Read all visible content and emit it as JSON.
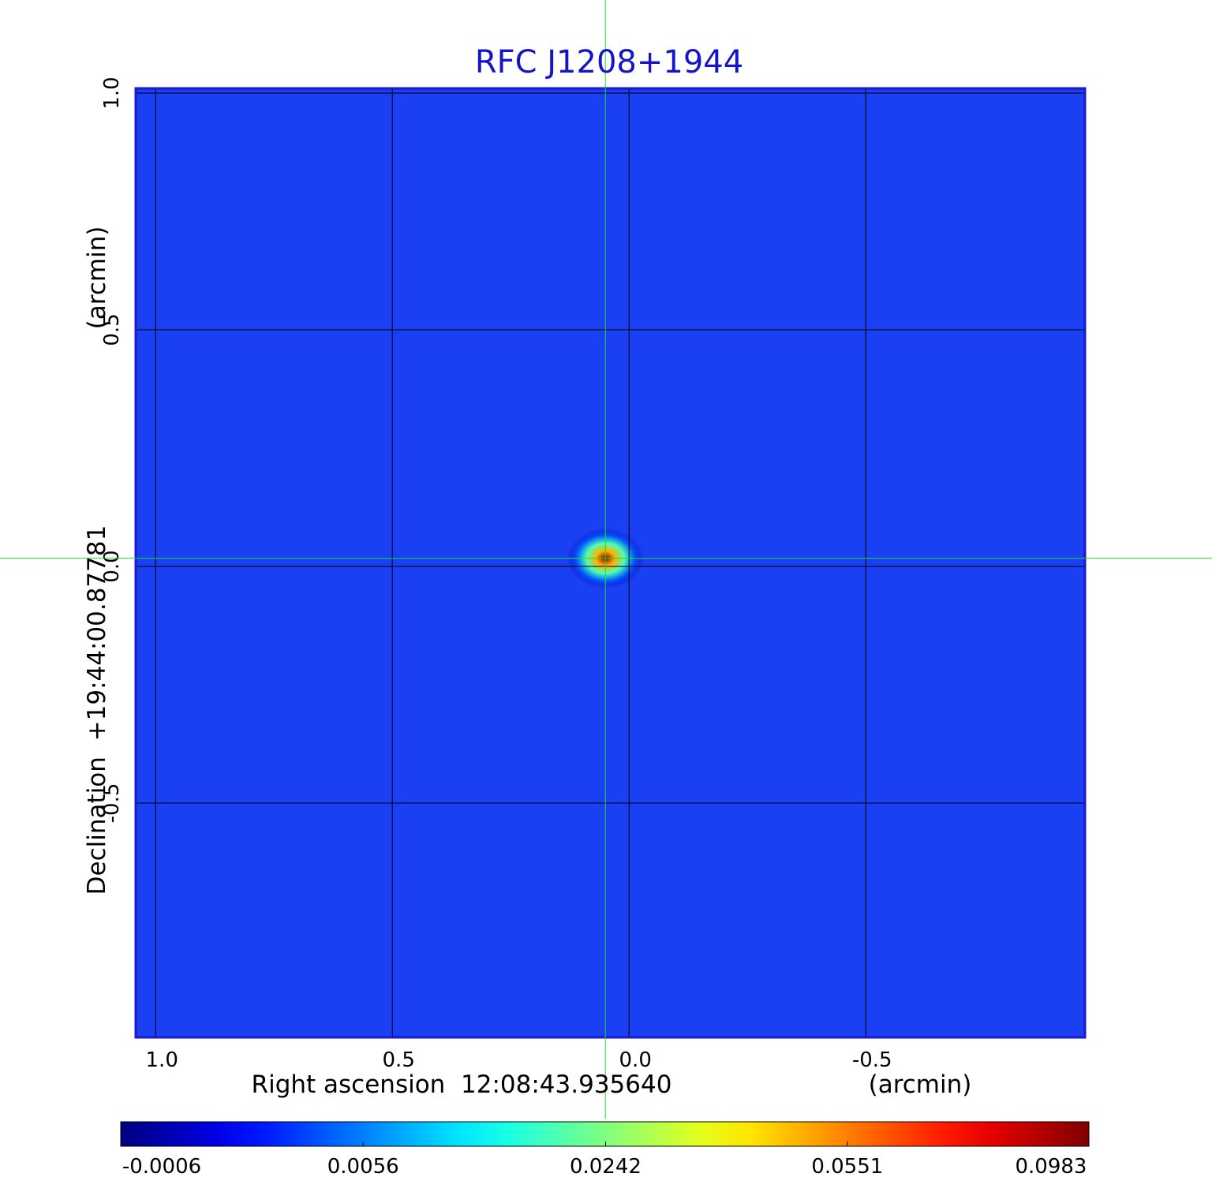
{
  "chart_data": {
    "type": "image",
    "title": "RFC J1208+1944",
    "xlabel": "Right ascension  12:08:43.935640",
    "xunit": "(arcmin)",
    "ylabel": "Declination  +19:44:00.87781",
    "yunit": "(arcmin)",
    "xlim": [
      1.042,
      -0.963
    ],
    "ylim": [
      -0.995,
      1.01
    ],
    "xticks": [
      {
        "value": 1.0,
        "label": "1.0"
      },
      {
        "value": 0.5,
        "label": "0.5"
      },
      {
        "value": 0.0,
        "label": "0.0"
      },
      {
        "value": -0.5,
        "label": "-0.5"
      }
    ],
    "yticks": [
      {
        "value": 1.0,
        "label": "1.0"
      },
      {
        "value": 0.5,
        "label": "0.5"
      },
      {
        "value": 0.0,
        "label": "0.0"
      },
      {
        "value": -0.5,
        "label": "-0.5"
      }
    ],
    "grid": true,
    "crosshair": [
      0.05,
      0.017
    ],
    "peak": {
      "x": 0.05,
      "y": 0.017,
      "value": 0.0983
    },
    "colormap": "jet",
    "colorbar": {
      "lim": [
        -0.0006,
        0.0983
      ],
      "scale": "sqrt",
      "ticks": [
        -0.0006,
        0.0056,
        0.0242,
        0.0551,
        0.0983
      ]
    }
  }
}
